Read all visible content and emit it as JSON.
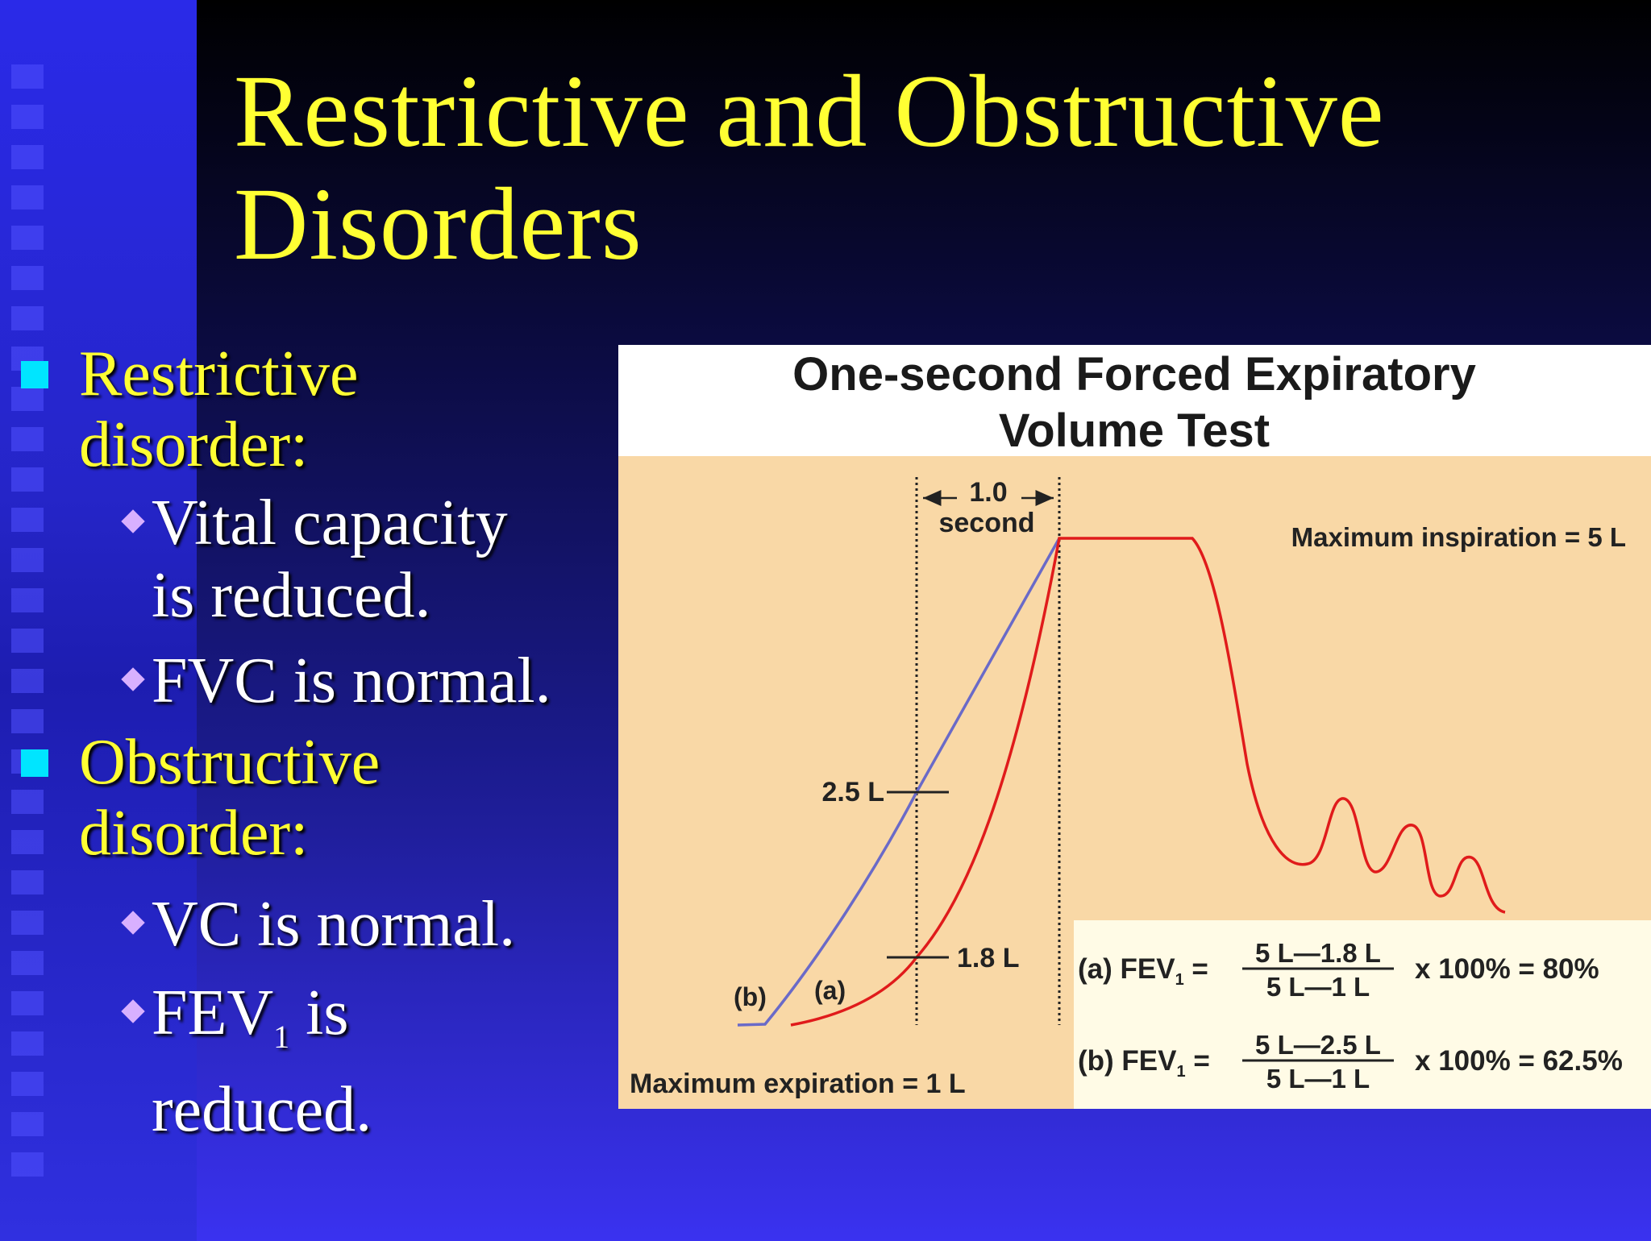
{
  "slide": {
    "title_line1": "Restrictive and Obstructive",
    "title_line2": "Disorders"
  },
  "bullets": {
    "restrictive_heading_l1": "Restrictive",
    "restrictive_heading_l2": "disorder:",
    "restrictive_1_l1": "Vital capacity",
    "restrictive_1_l2": "is reduced.",
    "restrictive_2": "FVC is normal.",
    "obstructive_heading_l1": "Obstructive",
    "obstructive_heading_l2": "disorder:",
    "obstructive_1": "VC is normal.",
    "obstructive_2_pre": "FEV",
    "obstructive_2_sub": "1",
    "obstructive_2_post": " is",
    "obstructive_2_l2": "reduced."
  },
  "diagram": {
    "title_l1": "One-second Forced Expiratory",
    "title_l2": "Volume Test",
    "interval_value": "1.0",
    "interval_unit": "second",
    "max_insp": "Maximum inspiration = 5 L",
    "max_exp": "Maximum expiration = 1 L",
    "mark_25": "2.5 L",
    "mark_18": "1.8 L",
    "label_b": "(b)",
    "label_a": "(a)",
    "eq_a_prefix": "(a) FEV",
    "eq_b_prefix": "(b) FEV",
    "eq_sub": "1",
    "eq_equals": " =",
    "eq_a_num": "5 L—1.8 L",
    "eq_b_num": "5 L—2.5 L",
    "eq_den": "5 L—1 L",
    "eq_a_result": "x 100% = 80%",
    "eq_b_result": "x 100% = 62.5%",
    "colors": {
      "curve_a": "#e01b1b",
      "curve_b": "#6a6ac8",
      "panel": "#f9d8a6",
      "formula_box": "#fffbe6"
    }
  }
}
